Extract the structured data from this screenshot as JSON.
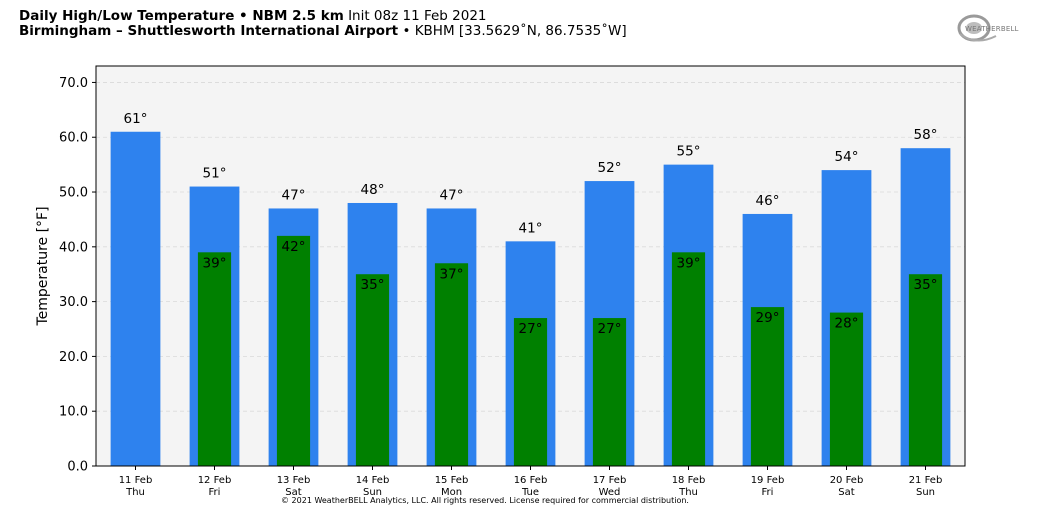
{
  "header": {
    "title_bold": "Daily High/Low Temperature • NBM 2.5 km",
    "title_init": "Init 08z 11 Feb 2021",
    "location_bold": "Birmingham – Shuttlesworth International Airport",
    "location_info": "• KBHM [33.5629˚N, 86.7535˚W]"
  },
  "logo": {
    "text": "WEATHERBELL",
    "name": "weatherbell-logo"
  },
  "copyright": "© 2021 WeatherBELL Analytics, LLC. All rights reserved. License required for commercial distribution.",
  "colors": {
    "high": "#2e82ee",
    "low": "#008000",
    "plot_bg": "#f4f4f4",
    "grid": "#d9d9d9"
  },
  "chart_data": {
    "type": "bar",
    "ylabel": "Temperature [°F]",
    "ylim": [
      0,
      73
    ],
    "yticks": [
      "0.0",
      "10.0",
      "20.0",
      "30.0",
      "40.0",
      "50.0",
      "60.0",
      "70.0"
    ],
    "grid": true,
    "categories": [
      "11 Feb",
      "12 Feb",
      "13 Feb",
      "14 Feb",
      "15 Feb",
      "16 Feb",
      "17 Feb",
      "18 Feb",
      "19 Feb",
      "20 Feb",
      "21 Feb"
    ],
    "weekdays": [
      "Thu",
      "Fri",
      "Sat",
      "Sun",
      "Mon",
      "Tue",
      "Wed",
      "Thu",
      "Fri",
      "Sat",
      "Sun"
    ],
    "series": [
      {
        "name": "High",
        "values": [
          61,
          51,
          47,
          48,
          47,
          41,
          52,
          55,
          46,
          54,
          58
        ],
        "labels": [
          "61°",
          "51°",
          "47°",
          "48°",
          "47°",
          "41°",
          "52°",
          "55°",
          "46°",
          "54°",
          "58°"
        ]
      },
      {
        "name": "Low",
        "values": [
          null,
          39,
          42,
          35,
          37,
          27,
          27,
          39,
          29,
          28,
          35
        ],
        "labels": [
          "",
          "39°",
          "42°",
          "35°",
          "37°",
          "27°",
          "27°",
          "39°",
          "29°",
          "28°",
          "35°"
        ]
      }
    ]
  }
}
